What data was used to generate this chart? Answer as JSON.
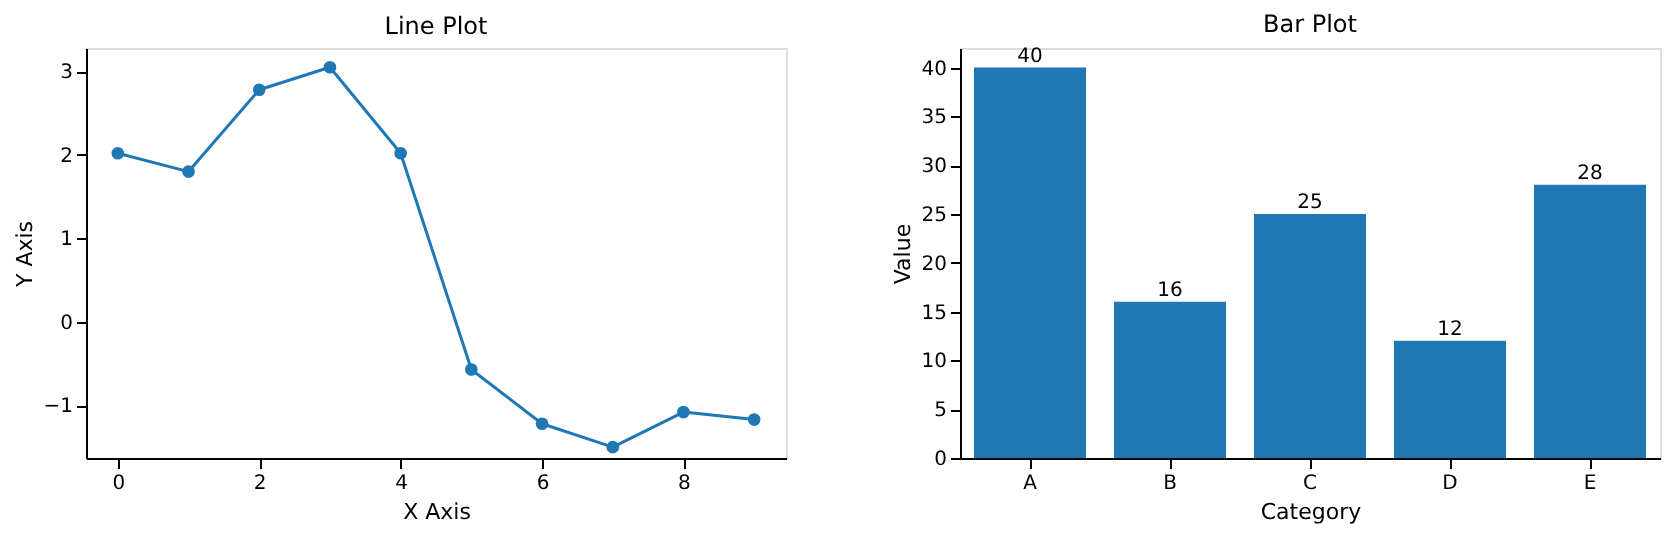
{
  "chart_data": [
    {
      "type": "line",
      "title": "Line Plot",
      "xlabel": "X Axis",
      "ylabel": "Y Axis",
      "x": [
        0,
        1,
        2,
        3,
        4,
        5,
        6,
        7,
        8,
        9
      ],
      "series": [
        {
          "color": "#1f77b4",
          "values": [
            2.02,
            1.8,
            2.78,
            3.05,
            2.02,
            -0.57,
            -1.22,
            -1.5,
            -1.08,
            -1.17
          ]
        }
      ],
      "xlim": [
        -0.45,
        9.45
      ],
      "xticks": [
        0,
        2,
        4,
        6,
        8
      ],
      "ylim": [
        -1.63,
        3.28
      ],
      "yticks": [
        -1,
        0,
        1,
        2,
        3
      ],
      "marker": "circle",
      "line_style": "solid",
      "grid": false
    },
    {
      "type": "bar",
      "title": "Bar Plot",
      "xlabel": "Category",
      "ylabel": "Value",
      "categories": [
        "A",
        "B",
        "C",
        "D",
        "E"
      ],
      "series": [
        {
          "color": "#1f77b4",
          "values": [
            40,
            16,
            25,
            12,
            28
          ]
        }
      ],
      "ylim": [
        0,
        42
      ],
      "yticks": [
        0,
        5,
        10,
        15,
        20,
        25,
        30,
        35,
        40
      ],
      "data_labels": true,
      "grid": false
    }
  ]
}
